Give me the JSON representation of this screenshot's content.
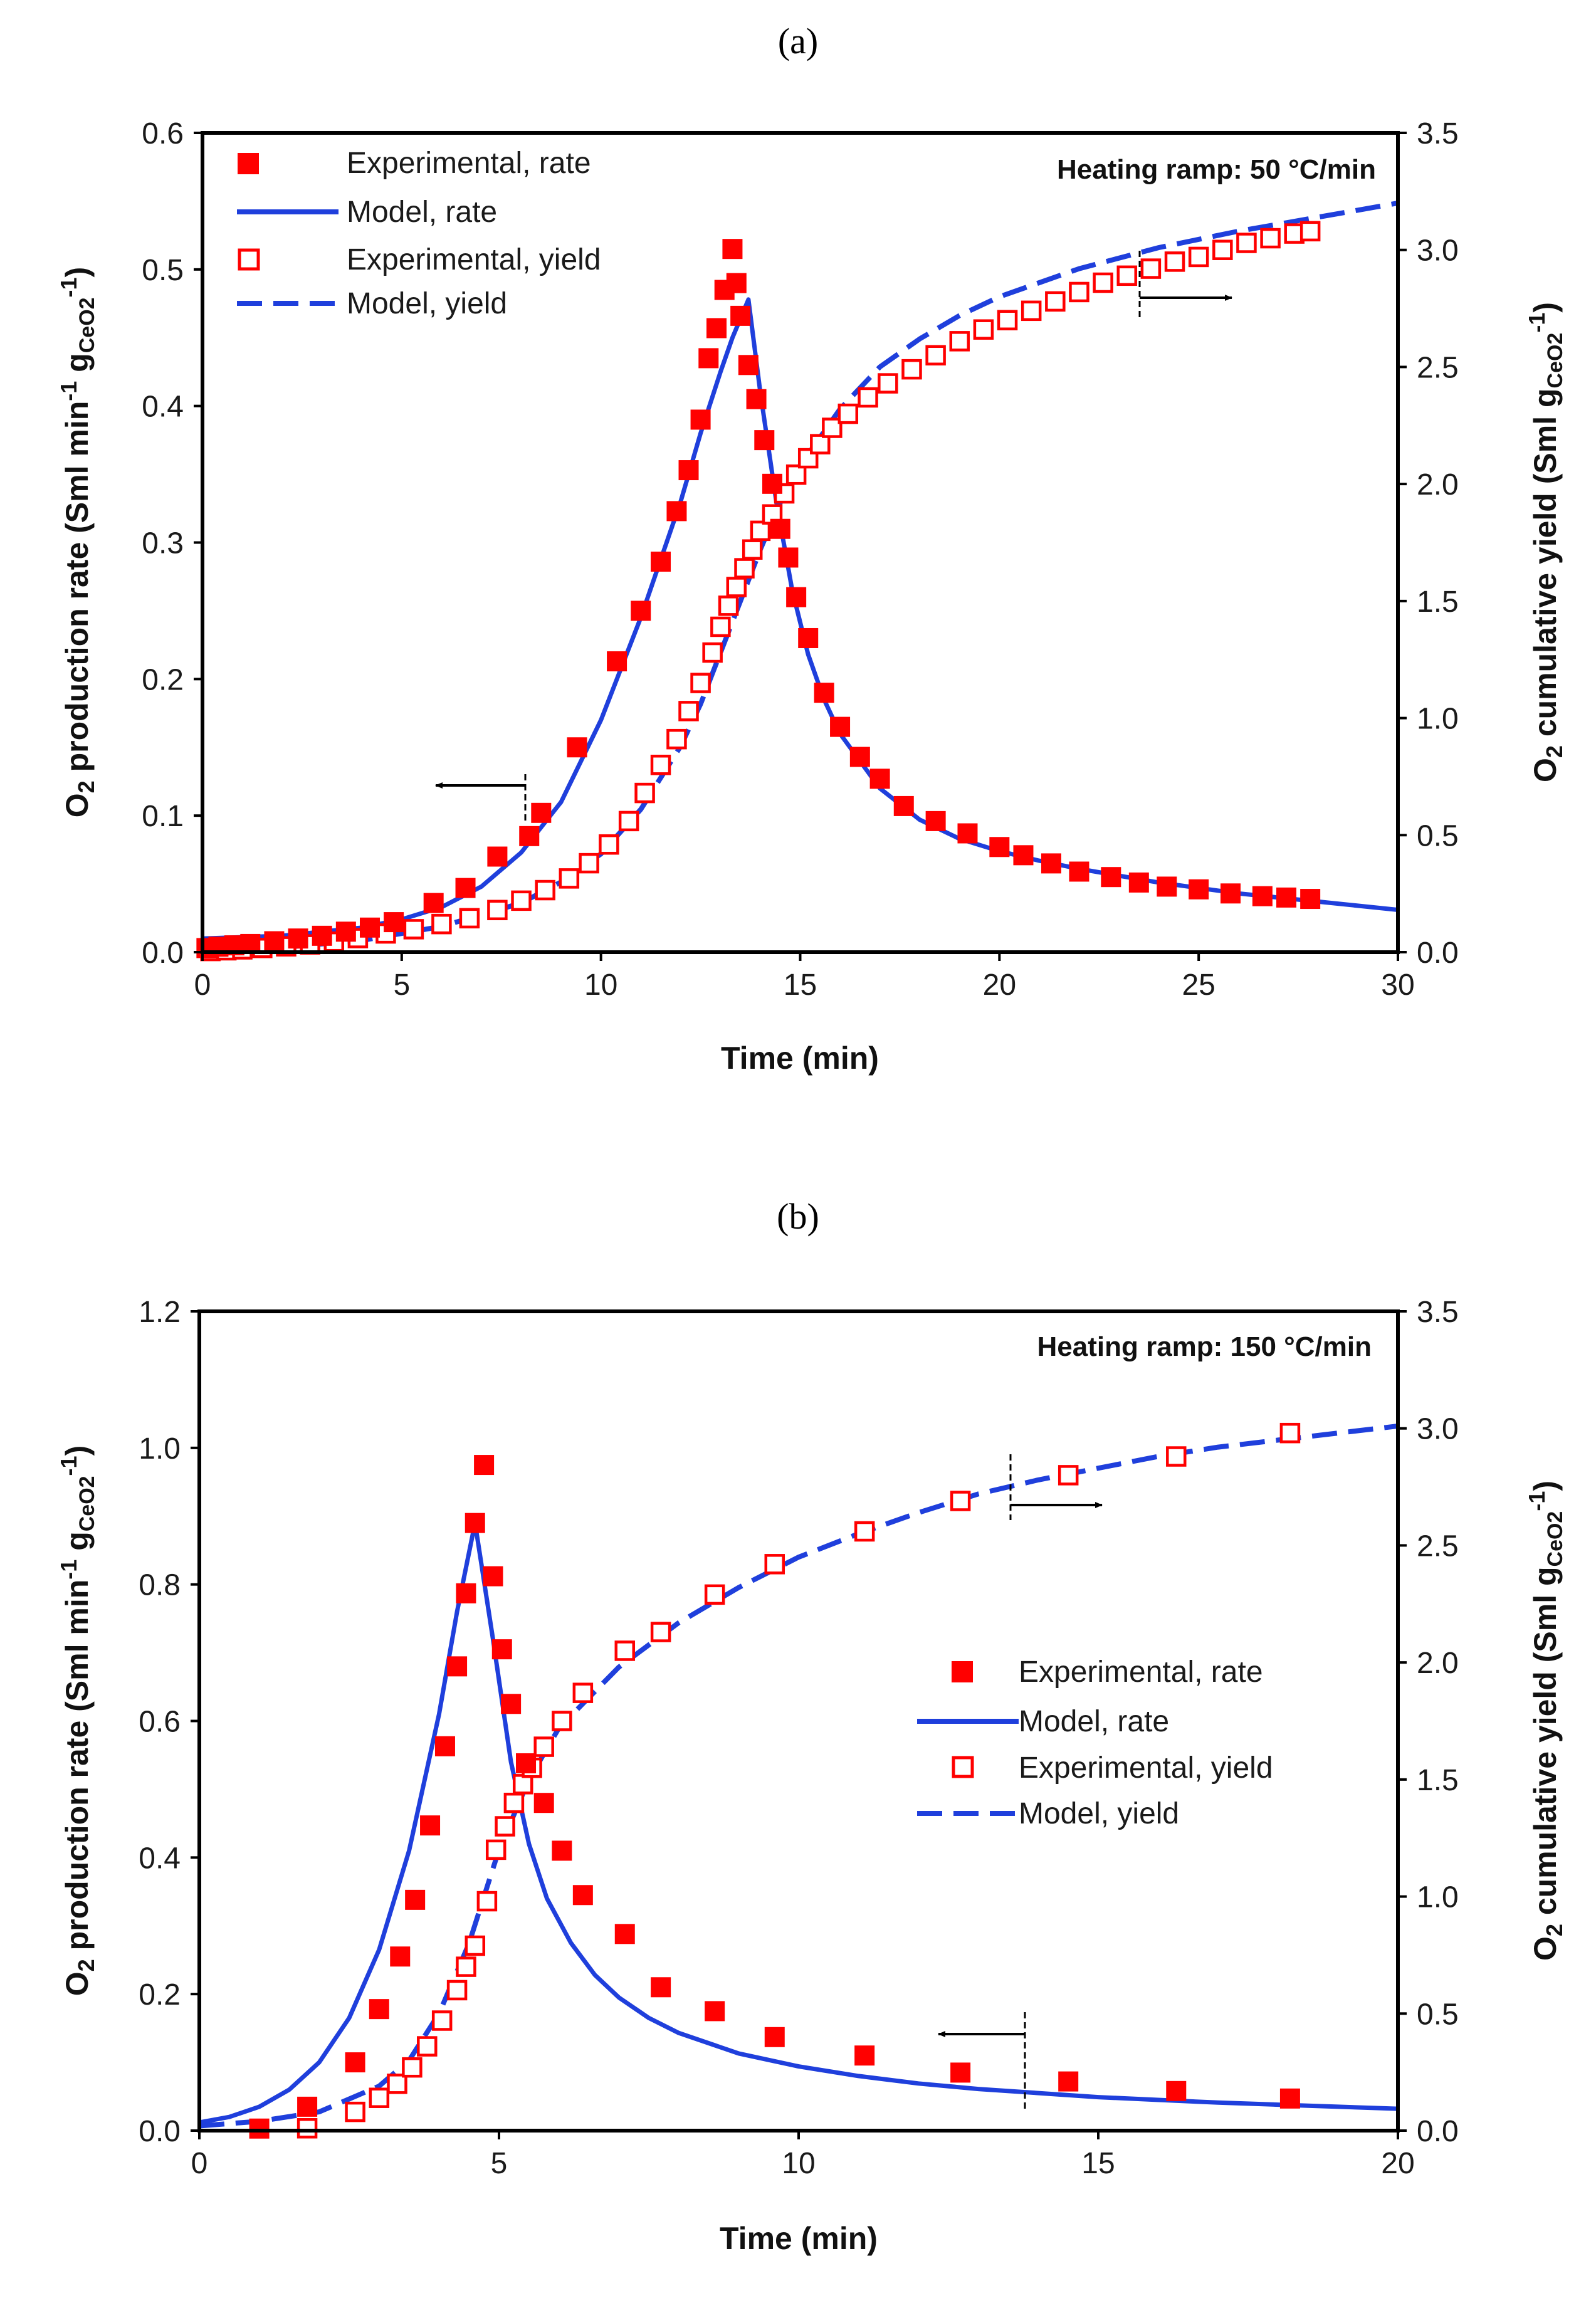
{
  "colors": {
    "experimental": "#ff0000",
    "model": "#1f3fdc",
    "axis": "#000000"
  },
  "chart_data": [
    {
      "type": "scatter",
      "panel_label": "(a)",
      "annotation": "Heating ramp: 50 °C/min",
      "xlabel": "Time (min)",
      "ylabel_left": "O2 production rate (Sml min-1 gCeO2-1)",
      "ylabel_right": "O2 cumulative yield (Sml gCeO2-1)",
      "xlim": [
        0,
        30
      ],
      "ylim_left": [
        0,
        0.6
      ],
      "ylim_right": [
        0,
        3.5
      ],
      "x_ticks": [
        "0",
        "5",
        "10",
        "15",
        "20",
        "25",
        "30"
      ],
      "y_left_ticks": [
        "0.0",
        "0.1",
        "0.2",
        "0.3",
        "0.4",
        "0.5",
        "0.6"
      ],
      "y_right_ticks": [
        "0.0",
        "0.5",
        "1.0",
        "1.5",
        "2.0",
        "2.5",
        "3.0",
        "3.5"
      ],
      "legend": [
        "Experimental, rate",
        "Model, rate",
        "Experimental, yield",
        "Model, yield"
      ],
      "series": [
        {
          "name": "Experimental, rate",
          "axis": "left",
          "marker": "filled-square",
          "x": [
            0.1,
            0.4,
            0.8,
            1.2,
            1.8,
            2.4,
            3.0,
            3.6,
            4.2,
            4.8,
            5.8,
            6.6,
            7.4,
            8.2,
            8.5,
            9.4,
            10.4,
            11.0,
            11.5,
            11.9,
            12.2,
            12.5,
            12.7,
            12.9,
            13.1,
            13.3,
            13.4,
            13.5,
            13.7,
            13.9,
            14.1,
            14.3,
            14.5,
            14.7,
            14.9,
            15.2,
            15.6,
            16.0,
            16.5,
            17.0,
            17.6,
            18.4,
            19.2,
            20.0,
            20.6,
            21.3,
            22.0,
            22.8,
            23.5,
            24.2,
            25.0,
            25.8,
            26.6,
            27.2,
            27.8
          ],
          "y": [
            0.003,
            0.004,
            0.005,
            0.006,
            0.008,
            0.01,
            0.012,
            0.015,
            0.018,
            0.022,
            0.036,
            0.047,
            0.07,
            0.085,
            0.102,
            0.15,
            0.213,
            0.25,
            0.286,
            0.323,
            0.353,
            0.39,
            0.435,
            0.457,
            0.485,
            0.515,
            0.49,
            0.466,
            0.43,
            0.405,
            0.375,
            0.343,
            0.31,
            0.289,
            0.26,
            0.23,
            0.19,
            0.165,
            0.143,
            0.127,
            0.107,
            0.096,
            0.087,
            0.077,
            0.071,
            0.065,
            0.059,
            0.055,
            0.051,
            0.048,
            0.046,
            0.043,
            0.041,
            0.04,
            0.039
          ]
        },
        {
          "name": "Model, rate",
          "axis": "left",
          "style": "solid",
          "x": [
            0,
            2,
            4,
            5,
            6,
            7,
            8,
            9,
            10,
            11,
            12,
            12.5,
            13,
            13.3,
            13.7,
            14.0,
            14.4,
            14.8,
            15.2,
            15.6,
            16,
            17,
            18,
            19,
            20,
            21,
            22,
            24,
            26,
            28,
            30
          ],
          "y": [
            0.01,
            0.012,
            0.018,
            0.024,
            0.033,
            0.048,
            0.073,
            0.11,
            0.17,
            0.245,
            0.33,
            0.38,
            0.425,
            0.45,
            0.478,
            0.41,
            0.33,
            0.265,
            0.218,
            0.185,
            0.16,
            0.12,
            0.097,
            0.083,
            0.074,
            0.067,
            0.061,
            0.051,
            0.043,
            0.037,
            0.031
          ]
        },
        {
          "name": "Experimental, yield",
          "axis": "right",
          "marker": "hollow-square",
          "x": [
            0.2,
            0.6,
            1.0,
            1.5,
            2.1,
            2.7,
            3.3,
            3.9,
            4.6,
            5.3,
            6.0,
            6.7,
            7.4,
            8.0,
            8.6,
            9.2,
            9.7,
            10.2,
            10.7,
            11.1,
            11.5,
            11.9,
            12.2,
            12.5,
            12.8,
            13.0,
            13.2,
            13.4,
            13.6,
            13.8,
            14.0,
            14.3,
            14.6,
            14.9,
            15.2,
            15.5,
            15.8,
            16.2,
            16.7,
            17.2,
            17.8,
            18.4,
            19.0,
            19.6,
            20.2,
            20.8,
            21.4,
            22.0,
            22.6,
            23.2,
            23.8,
            24.4,
            25.0,
            25.6,
            26.2,
            26.8,
            27.4,
            27.8
          ],
          "y": [
            0.005,
            0.008,
            0.012,
            0.018,
            0.025,
            0.033,
            0.045,
            0.06,
            0.08,
            0.098,
            0.12,
            0.145,
            0.18,
            0.22,
            0.265,
            0.315,
            0.38,
            0.46,
            0.56,
            0.68,
            0.8,
            0.91,
            1.03,
            1.15,
            1.28,
            1.39,
            1.48,
            1.56,
            1.64,
            1.72,
            1.8,
            1.87,
            1.96,
            2.04,
            2.11,
            2.17,
            2.24,
            2.3,
            2.37,
            2.43,
            2.49,
            2.55,
            2.61,
            2.66,
            2.7,
            2.74,
            2.78,
            2.82,
            2.86,
            2.89,
            2.92,
            2.95,
            2.97,
            3.0,
            3.03,
            3.05,
            3.07,
            3.08
          ]
        },
        {
          "name": "Model, yield",
          "axis": "right",
          "style": "dashed",
          "x": [
            0,
            2,
            4,
            6,
            8,
            9,
            10,
            11,
            12,
            12.5,
            13,
            13.5,
            14,
            14.5,
            15,
            16,
            17,
            18,
            19,
            20,
            22,
            24,
            26,
            28,
            30
          ],
          "y": [
            0.005,
            0.02,
            0.05,
            0.11,
            0.21,
            0.3,
            0.42,
            0.61,
            0.88,
            1.06,
            1.28,
            1.5,
            1.72,
            1.92,
            2.08,
            2.32,
            2.5,
            2.62,
            2.72,
            2.8,
            2.92,
            3.01,
            3.08,
            3.14,
            3.2
          ]
        }
      ]
    },
    {
      "type": "scatter",
      "panel_label": "(b)",
      "annotation": "Heating ramp: 150 °C/min",
      "xlabel": "Time (min)",
      "ylabel_left": "O2 production rate (Sml min-1 gCeO2-1)",
      "ylabel_right": "O2 cumulative yield (Sml gCeO2-1)",
      "xlim": [
        0,
        20
      ],
      "ylim_left": [
        0,
        1.2
      ],
      "ylim_right": [
        0,
        3.5
      ],
      "x_ticks": [
        "0",
        "5",
        "10",
        "15",
        "20"
      ],
      "y_left_ticks": [
        "0.0",
        "0.2",
        "0.4",
        "0.6",
        "0.8",
        "1.0",
        "1.2"
      ],
      "y_right_ticks": [
        "0.0",
        "0.5",
        "1.0",
        "1.5",
        "2.0",
        "2.5",
        "3.0",
        "3.5"
      ],
      "legend": [
        "Experimental, rate",
        "Model, rate",
        "Experimental, yield",
        "Model, yield"
      ],
      "series": [
        {
          "name": "Experimental, rate",
          "axis": "left",
          "marker": "filled-square",
          "x": [
            1.0,
            1.8,
            2.6,
            3.0,
            3.35,
            3.6,
            3.85,
            4.1,
            4.3,
            4.45,
            4.6,
            4.75,
            4.9,
            5.05,
            5.2,
            5.45,
            5.75,
            6.05,
            6.4,
            7.1,
            7.7,
            8.6,
            9.6,
            11.1,
            12.7,
            14.5,
            16.3,
            18.2
          ],
          "y": [
            0.003,
            0.035,
            0.1,
            0.178,
            0.255,
            0.338,
            0.447,
            0.563,
            0.68,
            0.787,
            0.89,
            0.975,
            0.812,
            0.705,
            0.625,
            0.538,
            0.48,
            0.41,
            0.345,
            0.288,
            0.21,
            0.175,
            0.137,
            0.11,
            0.085,
            0.072,
            0.058,
            0.047
          ]
        },
        {
          "name": "Model, rate",
          "axis": "left",
          "style": "solid",
          "x": [
            0,
            0.5,
            1.0,
            1.5,
            2.0,
            2.5,
            3.0,
            3.5,
            4.0,
            4.3,
            4.6,
            4.9,
            5.2,
            5.5,
            5.8,
            6.2,
            6.6,
            7.0,
            7.5,
            8,
            9,
            10,
            11,
            12,
            13,
            14,
            15,
            16,
            17,
            18,
            19,
            20
          ],
          "y": [
            0.012,
            0.02,
            0.035,
            0.06,
            0.1,
            0.165,
            0.265,
            0.41,
            0.61,
            0.76,
            0.89,
            0.72,
            0.54,
            0.42,
            0.34,
            0.275,
            0.228,
            0.195,
            0.165,
            0.143,
            0.113,
            0.094,
            0.08,
            0.069,
            0.061,
            0.055,
            0.049,
            0.045,
            0.041,
            0.038,
            0.035,
            0.032
          ]
        },
        {
          "name": "Experimental, yield",
          "axis": "right",
          "marker": "hollow-square",
          "x": [
            1.8,
            2.6,
            3.0,
            3.3,
            3.55,
            3.8,
            4.05,
            4.3,
            4.45,
            4.6,
            4.8,
            4.95,
            5.1,
            5.25,
            5.4,
            5.55,
            5.75,
            6.05,
            6.4,
            7.1,
            7.7,
            8.6,
            9.6,
            11.1,
            12.7,
            14.5,
            16.3,
            18.2
          ],
          "y": [
            0.01,
            0.08,
            0.14,
            0.2,
            0.27,
            0.36,
            0.47,
            0.6,
            0.7,
            0.79,
            0.98,
            1.2,
            1.3,
            1.4,
            1.48,
            1.55,
            1.64,
            1.75,
            1.87,
            2.05,
            2.13,
            2.29,
            2.42,
            2.56,
            2.69,
            2.8,
            2.88,
            2.98
          ]
        },
        {
          "name": "Model, yield",
          "axis": "right",
          "style": "dashed",
          "x": [
            0,
            1,
            2,
            3,
            3.5,
            4,
            4.5,
            5,
            5.5,
            6,
            7,
            8,
            9,
            10,
            11,
            12,
            13,
            14,
            15,
            16,
            17,
            18,
            19,
            20
          ],
          "y": [
            0.02,
            0.04,
            0.08,
            0.19,
            0.3,
            0.5,
            0.8,
            1.2,
            1.5,
            1.72,
            1.98,
            2.17,
            2.32,
            2.45,
            2.55,
            2.64,
            2.72,
            2.78,
            2.83,
            2.88,
            2.92,
            2.95,
            2.98,
            3.01
          ]
        }
      ]
    }
  ]
}
